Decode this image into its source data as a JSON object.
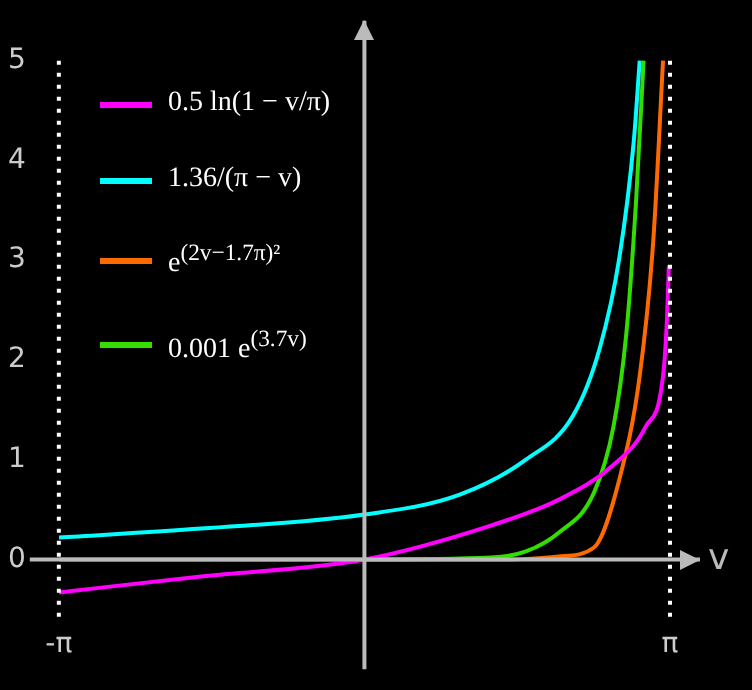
{
  "chart_data": {
    "type": "line",
    "xlabel": "v",
    "legend": "top left",
    "marker": "none",
    "xlim": [
      -3.44,
      3.45
    ],
    "ylim": [
      -1.1,
      5.4
    ],
    "xticks": [
      {
        "value": -3.1416,
        "label": "-π"
      },
      {
        "value": 3.1416,
        "label": "π"
      }
    ],
    "yticks": [
      0,
      1,
      2,
      3,
      4,
      5
    ],
    "ref_lines": [
      {
        "axis": "x",
        "value": -3.1416,
        "color": "#ffffff",
        "line_style": "dotted"
      },
      {
        "axis": "x",
        "value": 3.1416,
        "color": "#ffffff",
        "line_style": "dotted"
      }
    ],
    "series": [
      {
        "name": "0.5 ln(1 − v/π)",
        "color": "#ff00ff",
        "x": [
          -3.14,
          -1.68,
          0,
          1.33,
          2.0,
          2.55,
          2.89,
          3.07,
          3.11,
          3.13
        ],
        "values": [
          -0.33,
          -0.17,
          0,
          0.35,
          0.6,
          0.94,
          1.33,
          1.84,
          2.4,
          2.95
        ]
      },
      {
        "name": "1.36/(π − v)",
        "color": "#00ffff",
        "x": [
          -3.14,
          -1.68,
          0,
          0.98,
          1.66,
          2.15,
          2.42,
          2.62,
          2.77,
          2.83
        ],
        "values": [
          0.22,
          0.31,
          0.45,
          0.65,
          1.0,
          1.45,
          2.12,
          3.02,
          4.2,
          5.0
        ]
      },
      {
        "name": "e$^{(2v−1.7π)²}$",
        "color": "#ff6a00",
        "x": [
          0,
          1.5,
          2.0,
          2.36,
          2.62,
          2.83,
          2.97,
          3.07
        ],
        "values": [
          0,
          0,
          0.03,
          0.12,
          0.8,
          1.84,
          3.2,
          5.0
        ]
      },
      {
        "name": "0.001 e$^{(3.7v)}$",
        "color": "#33dd00",
        "x": [
          -3.14,
          0,
          1.3,
          1.66,
          2.0,
          2.36,
          2.56,
          2.69,
          2.79,
          2.87
        ],
        "values": [
          0,
          0,
          0.02,
          0.08,
          0.27,
          0.67,
          1.33,
          2.24,
          3.55,
          5.0
        ]
      }
    ]
  }
}
